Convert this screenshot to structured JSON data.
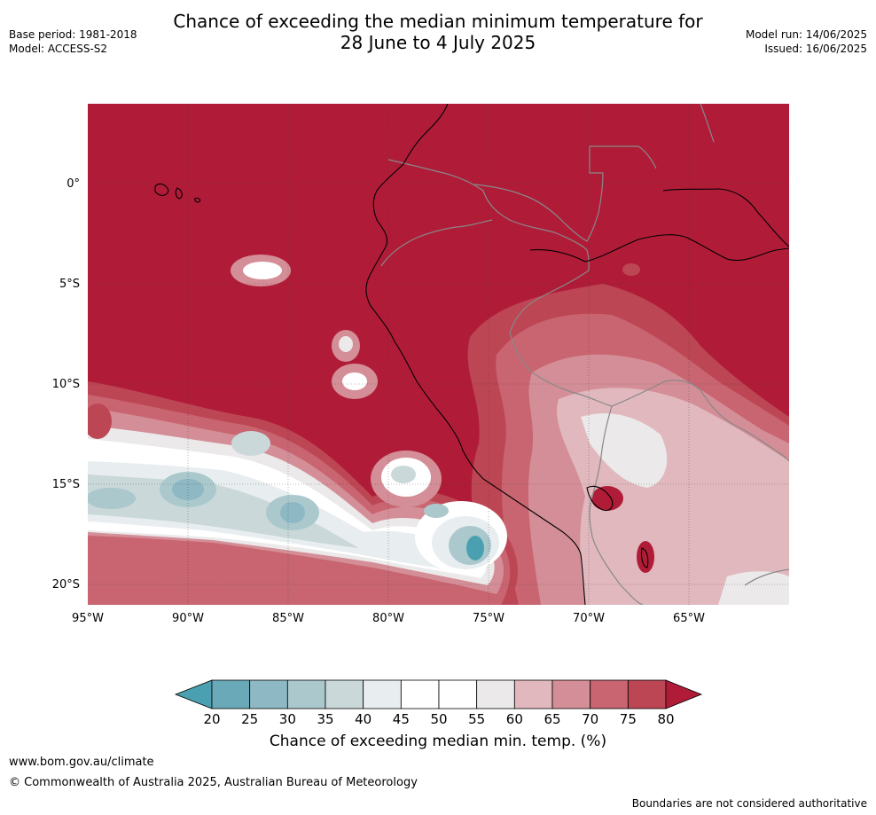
{
  "title": {
    "line1": "Chance of exceeding the median minimum temperature for",
    "line2": "28 June to 4 July 2025"
  },
  "meta": {
    "base_period": "Base period: 1981-2018",
    "model": "Model: ACCESS-S2",
    "model_run": "Model run: 14/06/2025",
    "issued": "Issued: 16/06/2025"
  },
  "axes": {
    "lon_labels": [
      "95°W",
      "90°W",
      "85°W",
      "80°W",
      "75°W",
      "70°W",
      "65°W"
    ],
    "lat_labels": [
      "0°",
      "5°S",
      "10°S",
      "15°S",
      "20°S"
    ]
  },
  "colorbar": {
    "title": "Chance of exceeding median min. temp. (%)",
    "ticks": [
      "20",
      "25",
      "30",
      "35",
      "40",
      "45",
      "50",
      "55",
      "60",
      "65",
      "70",
      "75",
      "80"
    ],
    "colors": [
      "#6aa9b8",
      "#8db8c4",
      "#abc8cd",
      "#cad8da",
      "#e8eef0",
      "#ffffff",
      "#ffffff",
      "#ebe9ea",
      "#e0b8be",
      "#d48e97",
      "#c86570",
      "#bc4653"
    ],
    "under_color": "#4aa0b0",
    "over_color": "#b01c38"
  },
  "map_colors": {
    "base": "#b01c38",
    "c75": "#bd4654",
    "c70": "#c86570",
    "c65": "#d48e97",
    "c60": "#e0b8be",
    "c55": "#ebe9ea",
    "c50": "#ffffff",
    "c40": "#e8eef0",
    "c35": "#cad8da",
    "c30": "#abc8cd",
    "c25": "#8db8c4",
    "c20": "#4aa0b0",
    "coast": "#000000",
    "border": "#888888"
  },
  "footer": {
    "url": "www.bom.gov.au/climate",
    "copyright": "© Commonwealth of Australia 2025, Australian Bureau of Meteorology",
    "note": "Boundaries are not considered authoritative"
  }
}
